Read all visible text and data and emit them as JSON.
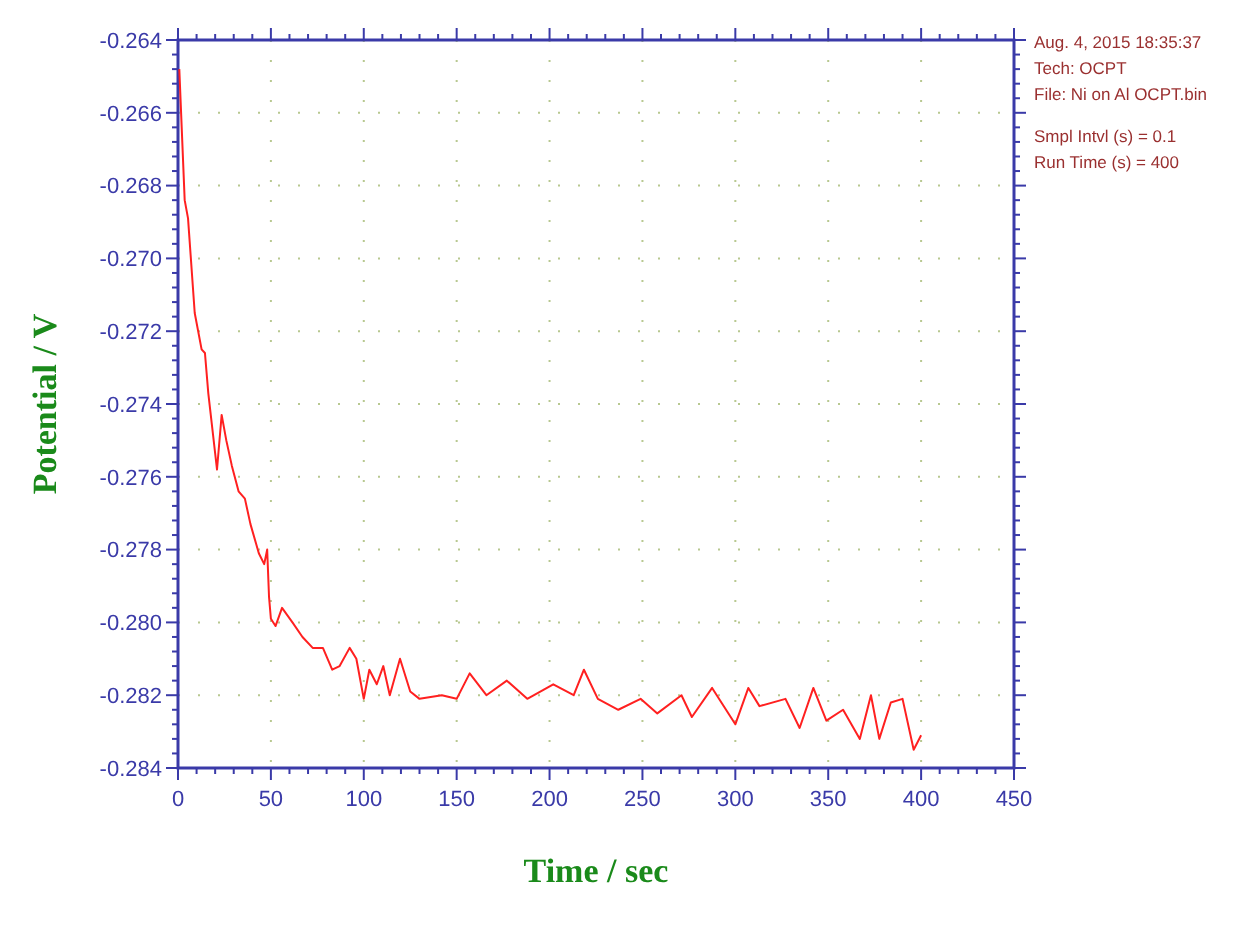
{
  "chart_data": {
    "type": "line",
    "xlabel": "Time / sec",
    "ylabel": "Potential / V",
    "annotations": [
      "Aug. 4, 2015   18:35:37",
      "Tech: OCPT",
      "File: Ni on Al OCPT.bin",
      "Smpl Intvl (s) = 0.1",
      "Run Time (s) = 400"
    ],
    "xlim": [
      0,
      450
    ],
    "ylim": [
      -0.284,
      -0.264
    ],
    "xticks": [
      0,
      50,
      100,
      150,
      200,
      250,
      300,
      350,
      400,
      450
    ],
    "yticks": [
      {
        "value": -0.284,
        "label": "-0.284"
      },
      {
        "value": -0.282,
        "label": "-0.282"
      },
      {
        "value": -0.28,
        "label": "-0.280"
      },
      {
        "value": -0.278,
        "label": "-0.278"
      },
      {
        "value": -0.276,
        "label": "-0.276"
      },
      {
        "value": -0.274,
        "label": "-0.274"
      },
      {
        "value": -0.272,
        "label": "-0.272"
      },
      {
        "value": -0.27,
        "label": "-0.270"
      },
      {
        "value": -0.268,
        "label": "-0.268"
      },
      {
        "value": -0.266,
        "label": "-0.266"
      },
      {
        "value": -0.264,
        "label": "-0.264"
      }
    ],
    "grid": true,
    "line_style": "solid",
    "series": [
      {
        "color": "#ff2020",
        "x": [
          0.7,
          3.6,
          5.4,
          9,
          12.7,
          14.5,
          16.3,
          21,
          23.5,
          26,
          29,
          32.6,
          36,
          39,
          43.5,
          46.4,
          48,
          49,
          50,
          52.5,
          56,
          61.6,
          67,
          72.5,
          78,
          83,
          87,
          92.4,
          96,
          100,
          103,
          107,
          110.5,
          114,
          119.5,
          125,
          130,
          142,
          150,
          157,
          166,
          177,
          188,
          202,
          213,
          218.5,
          226,
          237,
          249,
          258,
          271,
          276.6,
          287.5,
          300,
          307,
          313,
          327,
          334.6,
          342,
          349,
          358,
          367,
          373,
          377.5,
          383.7,
          390,
          396,
          400
        ],
        "values": [
          -0.2648,
          -0.2684,
          -0.2689,
          -0.2715,
          -0.2725,
          -0.2726,
          -0.2737,
          -0.2758,
          -0.2743,
          -0.275,
          -0.2757,
          -0.2764,
          -0.2766,
          -0.2773,
          -0.2781,
          -0.2784,
          -0.278,
          -0.2793,
          -0.2799,
          -0.2801,
          -0.2796,
          -0.28,
          -0.2804,
          -0.2807,
          -0.2807,
          -0.2813,
          -0.2812,
          -0.2807,
          -0.281,
          -0.2821,
          -0.2813,
          -0.2817,
          -0.2812,
          -0.282,
          -0.281,
          -0.2819,
          -0.2821,
          -0.282,
          -0.2821,
          -0.2814,
          -0.282,
          -0.2816,
          -0.2821,
          -0.2817,
          -0.282,
          -0.2813,
          -0.2821,
          -0.2824,
          -0.2821,
          -0.2825,
          -0.282,
          -0.2826,
          -0.2818,
          -0.2828,
          -0.2818,
          -0.2823,
          -0.2821,
          -0.2829,
          -0.2818,
          -0.2827,
          -0.2824,
          -0.2832,
          -0.282,
          -0.2832,
          -0.2822,
          -0.2821,
          -0.2835,
          -0.2831
        ]
      }
    ]
  }
}
